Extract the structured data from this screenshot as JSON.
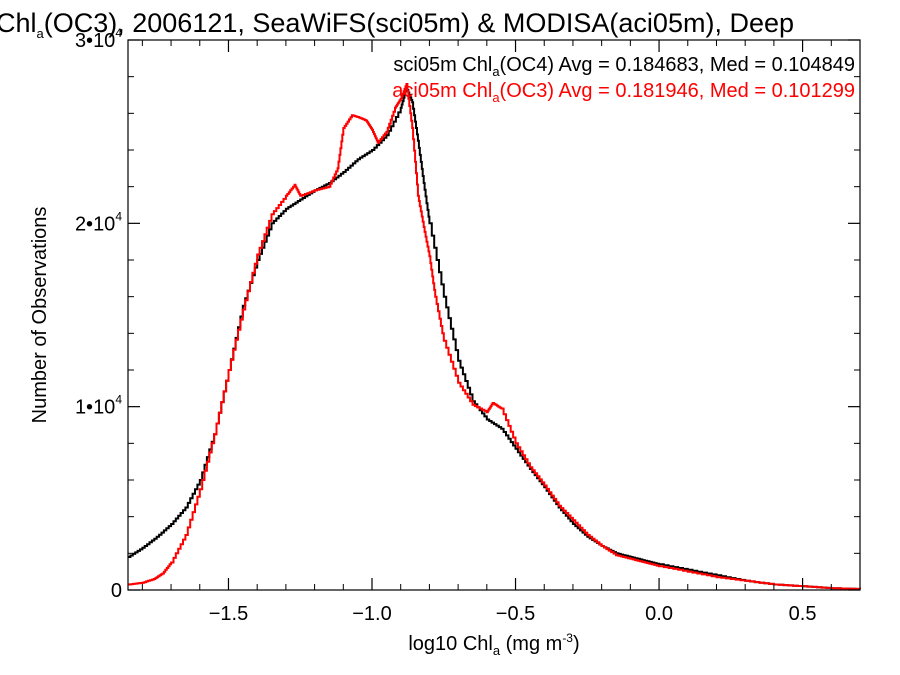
{
  "chart_data": {
    "type": "line",
    "title": {
      "pre": "Chl",
      "sub": "a",
      "post": "(OC3), 2006121, SeaWiFS(sci05m) & MODISA(aci05m), Deep"
    },
    "xlabel": {
      "pre": "log10 Chl",
      "sub": "a",
      "mid": " (mg m",
      "sup": "-3",
      "post": ")"
    },
    "ylabel": "Number of Observations",
    "xlim": [
      -1.85,
      0.7
    ],
    "ylim": [
      0,
      30000
    ],
    "x_ticks": [
      -1.5,
      -1.0,
      -0.5,
      0.0,
      0.5
    ],
    "x_tick_labels": [
      "−1.5",
      "−1.0",
      "−0.5",
      "0.0",
      "0.5"
    ],
    "y_ticks": [
      {
        "value": 0,
        "base": "0",
        "exp": ""
      },
      {
        "value": 10000,
        "base": "1•10",
        "exp": "4"
      },
      {
        "value": 20000,
        "base": "2•10",
        "exp": "4"
      },
      {
        "value": 30000,
        "base": "3•10",
        "exp": "4"
      }
    ],
    "legend_position": "top-right",
    "series": [
      {
        "name": "sci05m",
        "color": "#000000",
        "legend": {
          "pre": "sci05m Chl",
          "sub": "a",
          "post": "(OC4) Avg = 0.184683, Med = 0.104849"
        },
        "x": [
          -1.85,
          -1.8,
          -1.75,
          -1.7,
          -1.65,
          -1.6,
          -1.55,
          -1.5,
          -1.45,
          -1.4,
          -1.35,
          -1.3,
          -1.25,
          -1.2,
          -1.15,
          -1.1,
          -1.05,
          -1.0,
          -0.95,
          -0.9,
          -0.88,
          -0.86,
          -0.84,
          -0.82,
          -0.8,
          -0.75,
          -0.7,
          -0.65,
          -0.6,
          -0.55,
          -0.5,
          -0.45,
          -0.4,
          -0.35,
          -0.3,
          -0.25,
          -0.2,
          -0.15,
          -0.1,
          -0.05,
          0.0,
          0.1,
          0.2,
          0.3,
          0.4,
          0.5,
          0.6,
          0.7
        ],
        "y": [
          1800,
          2300,
          2900,
          3600,
          4500,
          6000,
          8500,
          12000,
          15500,
          18000,
          20000,
          20800,
          21300,
          21800,
          22200,
          22800,
          23500,
          24000,
          24800,
          26300,
          27400,
          26600,
          24500,
          22200,
          20000,
          16000,
          12500,
          10300,
          9300,
          8800,
          7700,
          6600,
          5600,
          4500,
          3600,
          2900,
          2400,
          2000,
          1800,
          1600,
          1400,
          1100,
          800,
          500,
          300,
          200,
          100,
          50
        ]
      },
      {
        "name": "aci05m",
        "color": "#ff0000",
        "legend": {
          "pre": "aci05m Chl",
          "sub": "a",
          "post": "(OC3) Avg = 0.181946, Med = 0.101299"
        },
        "x": [
          -1.85,
          -1.8,
          -1.76,
          -1.73,
          -1.7,
          -1.65,
          -1.6,
          -1.55,
          -1.5,
          -1.45,
          -1.4,
          -1.35,
          -1.3,
          -1.27,
          -1.25,
          -1.2,
          -1.15,
          -1.12,
          -1.1,
          -1.07,
          -1.05,
          -1.02,
          -1.0,
          -0.98,
          -0.95,
          -0.92,
          -0.9,
          -0.88,
          -0.86,
          -0.84,
          -0.82,
          -0.8,
          -0.78,
          -0.75,
          -0.7,
          -0.65,
          -0.6,
          -0.58,
          -0.55,
          -0.5,
          -0.45,
          -0.4,
          -0.35,
          -0.3,
          -0.25,
          -0.2,
          -0.15,
          -0.1,
          -0.05,
          0.0,
          0.1,
          0.2,
          0.3,
          0.4,
          0.5,
          0.6,
          0.7
        ],
        "y": [
          300,
          400,
          600,
          900,
          1500,
          3000,
          5500,
          8500,
          12000,
          15300,
          18300,
          20500,
          21500,
          22100,
          21500,
          21800,
          22000,
          23000,
          25200,
          25900,
          25800,
          25600,
          25100,
          24400,
          25000,
          26300,
          26800,
          27600,
          25200,
          21500,
          19800,
          18200,
          16000,
          13600,
          11300,
          10100,
          9700,
          10200,
          9900,
          8000,
          6700,
          5700,
          4600,
          3800,
          3000,
          2400,
          1900,
          1700,
          1500,
          1300,
          1000,
          700,
          500,
          300,
          200,
          100,
          50
        ]
      }
    ]
  }
}
